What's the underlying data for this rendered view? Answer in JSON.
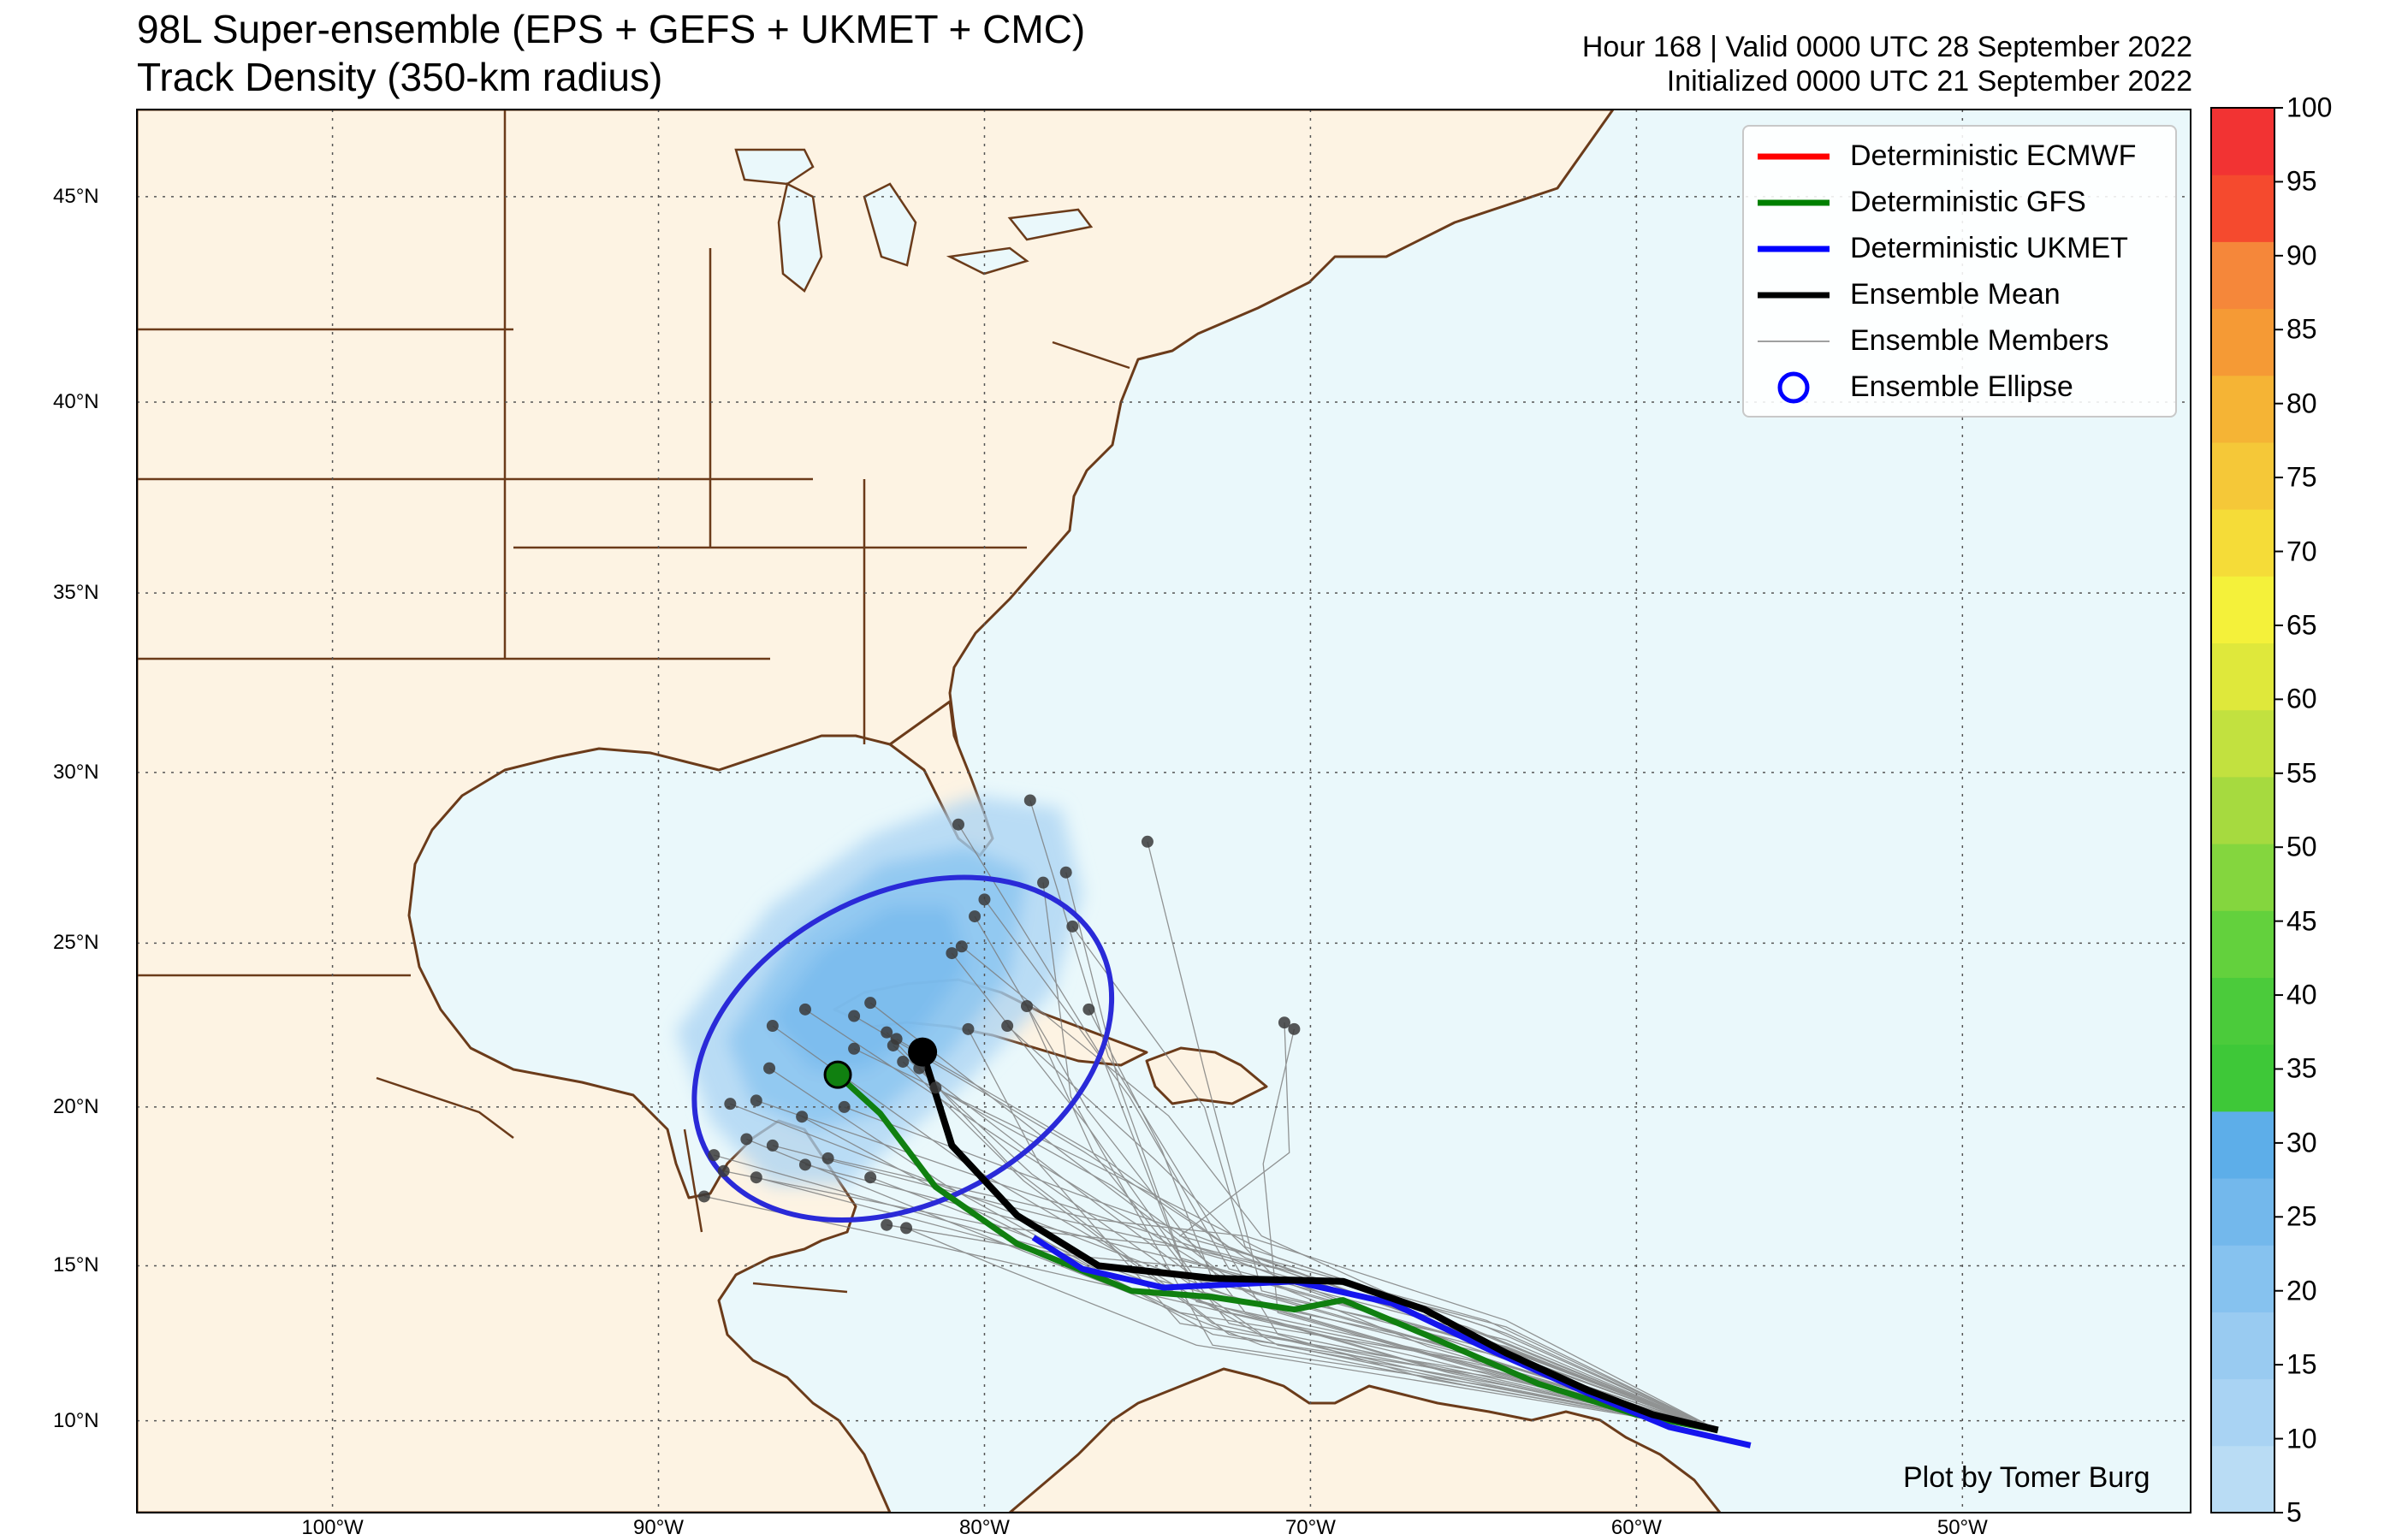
{
  "title": {
    "line1": "98L Super-ensemble (EPS + GEFS + UKMET + CMC)",
    "line2": "Track Density (350-km radius)",
    "right1": "Hour 168 | Valid 0000 UTC 28 September 2022",
    "right2": "Initialized 0000 UTC 21 September 2022"
  },
  "legend": [
    {
      "label": "Deterministic ECMWF",
      "color": "#ff0000",
      "style": "line-thick"
    },
    {
      "label": "Deterministic GFS",
      "color": "#008000",
      "style": "line-thick"
    },
    {
      "label": "Deterministic UKMET",
      "color": "#0000ff",
      "style": "line-thick"
    },
    {
      "label": "Ensemble Mean",
      "color": "#000000",
      "style": "line-thick"
    },
    {
      "label": "Ensemble Members",
      "color": "#808080",
      "style": "line-thin"
    },
    {
      "label": "Ensemble Ellipse",
      "color": "#0000ff",
      "style": "ring"
    }
  ],
  "credit": "Plot by Tomer Burg",
  "colorbar": {
    "ticks": [
      "5",
      "10",
      "15",
      "20",
      "25",
      "30",
      "35",
      "40",
      "45",
      "50",
      "55",
      "60",
      "65",
      "70",
      "75",
      "80",
      "85",
      "90",
      "95",
      "100"
    ],
    "colors": [
      "#b9dcf4",
      "#a9d3f3",
      "#99cbf1",
      "#86c2ef",
      "#73b8ec",
      "#5daee9",
      "#3ec838",
      "#4bcb3b",
      "#63d13d",
      "#84d63e",
      "#a6da3f",
      "#c2e13f",
      "#dfe83b",
      "#f4f13a",
      "#f5dc38",
      "#f5c838",
      "#f5b435",
      "#f59a35",
      "#f5873a",
      "#f54a2e",
      "#f23333"
    ]
  },
  "axes": {
    "lat_labels": [
      "45°N",
      "40°N",
      "35°N",
      "30°N",
      "25°N",
      "20°N",
      "15°N",
      "10°N"
    ],
    "lon_labels": [
      "100°W",
      "90°W",
      "80°W",
      "70°W",
      "60°W",
      "50°W"
    ],
    "extent": {
      "lon_min": -106,
      "lon_max": -43,
      "lat_min": 7,
      "lat_max": 47
    }
  },
  "colors": {
    "land": "#fdf3e3",
    "ocean": "#eaf8fb",
    "border": "#6b3b1a",
    "gridline": "#555555"
  },
  "tracks": {
    "ensemble_mean": [
      [
        -57.5,
        9.7
      ],
      [
        -59.5,
        10.2
      ],
      [
        -61.5,
        11.0
      ],
      [
        -64.0,
        12.2
      ],
      [
        -66.5,
        13.6
      ],
      [
        -69.0,
        14.5
      ],
      [
        -73.0,
        14.6
      ],
      [
        -76.5,
        15.0
      ],
      [
        -79.0,
        16.6
      ],
      [
        -81.0,
        18.8
      ],
      [
        -81.9,
        21.7
      ]
    ],
    "gfs": [
      [
        -57.5,
        9.7
      ],
      [
        -60.0,
        10.2
      ],
      [
        -63.0,
        11.2
      ],
      [
        -66.5,
        12.8
      ],
      [
        -69.0,
        13.9
      ],
      [
        -70.5,
        13.6
      ],
      [
        -73.0,
        14.0
      ],
      [
        -75.5,
        14.2
      ],
      [
        -79.0,
        15.7
      ],
      [
        -81.5,
        17.5
      ],
      [
        -83.2,
        19.8
      ],
      [
        -84.5,
        21.0
      ]
    ],
    "ukmet": [
      [
        -56.5,
        9.2
      ],
      [
        -59.0,
        9.8
      ],
      [
        -61.5,
        10.9
      ],
      [
        -64.5,
        12.3
      ],
      [
        -67.5,
        13.8
      ],
      [
        -70.5,
        14.5
      ],
      [
        -74.5,
        14.3
      ],
      [
        -77.0,
        14.9
      ],
      [
        -78.5,
        15.9
      ]
    ]
  },
  "markers": {
    "gfs_end": [
      -84.5,
      21.0
    ],
    "mean_end": [
      -81.9,
      21.7
    ]
  },
  "ellipse": {
    "center": [
      -82.5,
      21.8
    ],
    "lon_radius": 6.8,
    "lat_radius": 4.8,
    "rotation_deg": -28
  },
  "member_endpoints": [
    [
      -86.5,
      22.5
    ],
    [
      -85.5,
      23.0
    ],
    [
      -84.0,
      22.8
    ],
    [
      -83.0,
      22.3
    ],
    [
      -82.0,
      21.2
    ],
    [
      -81.5,
      20.6
    ],
    [
      -80.5,
      22.4
    ],
    [
      -79.3,
      22.5
    ],
    [
      -80.7,
      24.9
    ],
    [
      -80.3,
      25.8
    ],
    [
      -80.0,
      26.3
    ],
    [
      -78.2,
      26.8
    ],
    [
      -77.5,
      27.1
    ],
    [
      -80.8,
      28.5
    ],
    [
      -78.6,
      29.2
    ],
    [
      -75.0,
      28.0
    ],
    [
      -77.3,
      25.5
    ],
    [
      -78.7,
      23.1
    ],
    [
      -76.8,
      23.0
    ],
    [
      -84.3,
      20.0
    ],
    [
      -85.6,
      19.7
    ],
    [
      -86.5,
      18.8
    ],
    [
      -87.3,
      19.0
    ],
    [
      -87.8,
      20.1
    ],
    [
      -87.0,
      20.2
    ],
    [
      -86.6,
      21.2
    ],
    [
      -88.3,
      18.5
    ],
    [
      -88.0,
      18.0
    ],
    [
      -87.0,
      17.8
    ],
    [
      -85.5,
      18.2
    ],
    [
      -84.8,
      18.4
    ],
    [
      -83.5,
      17.8
    ],
    [
      -83.0,
      16.3
    ],
    [
      -82.4,
      16.2
    ],
    [
      -88.6,
      17.2
    ],
    [
      -84.0,
      21.8
    ],
    [
      -82.8,
      21.9
    ],
    [
      -83.5,
      23.2
    ],
    [
      -82.7,
      22.1
    ],
    [
      -82.5,
      21.4
    ],
    [
      -81.0,
      24.7
    ],
    [
      -70.8,
      22.6
    ],
    [
      -70.5,
      22.4
    ]
  ]
}
